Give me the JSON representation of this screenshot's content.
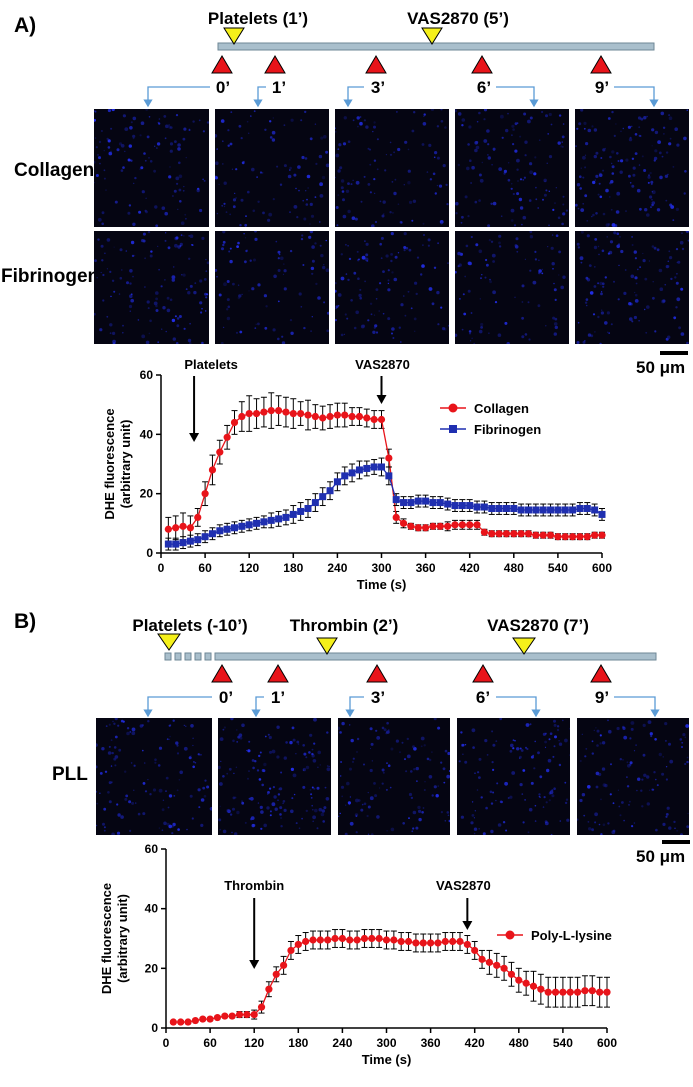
{
  "panels": [
    {
      "label": "A)",
      "timeline": {
        "events": [
          {
            "label": "Platelets (1’)"
          },
          {
            "label": "VAS2870 (5’)"
          }
        ],
        "timepoints": [
          "0’",
          "1’",
          "3’",
          "6’",
          "9’"
        ]
      },
      "rows": [
        "Collagen",
        "Fibrinogen"
      ],
      "scale_bar": "50 μm"
    },
    {
      "label": "B)",
      "timeline": {
        "events": [
          {
            "label": "Platelets (-10’)"
          },
          {
            "label": "Thrombin (2’)"
          },
          {
            "label": "VAS2870 (7’)"
          }
        ],
        "timepoints": [
          "0’",
          "1’",
          "3’",
          "6’",
          "9’"
        ]
      },
      "rows": [
        "PLL"
      ],
      "scale_bar": "50 μm"
    }
  ],
  "colors": {
    "collagen": "#e8141a",
    "fibrinogen": "#1f2fb0",
    "pll": "#e8141a",
    "timeline_bar": "#a9bfcc",
    "marker_red": "#e8141a",
    "marker_yellow": "#f5f01a",
    "arrow_blue": "#5b9bd5"
  },
  "chart_data": [
    {
      "type": "line",
      "xlabel": "Time (s)",
      "ylabel": "DHE fluorescence\n(arbitrary unit)",
      "xlim": [
        0,
        600
      ],
      "ylim": [
        0,
        60
      ],
      "xticks": [
        0,
        60,
        120,
        180,
        240,
        300,
        360,
        420,
        480,
        540,
        600
      ],
      "yticks": [
        0,
        20,
        40,
        60
      ],
      "legend": "right",
      "annotations": [
        {
          "text": "Platelets",
          "x": 45
        },
        {
          "text": "VAS2870",
          "x": 300
        }
      ],
      "series": [
        {
          "name": "Collagen",
          "marker": "circle",
          "color": "#e8141a",
          "x": [
            10,
            20,
            30,
            40,
            50,
            60,
            70,
            80,
            90,
            100,
            110,
            120,
            130,
            140,
            150,
            160,
            170,
            180,
            190,
            200,
            210,
            220,
            230,
            240,
            250,
            260,
            270,
            280,
            290,
            300,
            310,
            320,
            330,
            340,
            350,
            360,
            370,
            380,
            390,
            400,
            410,
            420,
            430,
            440,
            450,
            460,
            470,
            480,
            490,
            500,
            510,
            520,
            530,
            540,
            550,
            560,
            570,
            580,
            590,
            600
          ],
          "y": [
            8,
            8.5,
            9,
            8.5,
            12,
            20,
            28,
            34,
            39,
            44,
            46,
            47,
            47,
            47.5,
            48,
            48,
            47.5,
            47,
            47,
            46.5,
            46,
            45.5,
            46,
            46.5,
            46.5,
            46,
            46,
            45.5,
            45,
            45,
            32,
            12,
            10,
            9,
            8.5,
            8.5,
            9,
            9,
            9,
            9.5,
            9.5,
            9.5,
            9.5,
            7,
            6.5,
            6.5,
            6.5,
            6.5,
            6.5,
            6.5,
            6,
            6,
            6,
            5.5,
            5.5,
            5.5,
            5.5,
            5.5,
            6,
            6
          ],
          "err": [
            4,
            4,
            4.5,
            4,
            3,
            4,
            5,
            4,
            4,
            4,
            5,
            6,
            5,
            5,
            6,
            5,
            5,
            5,
            4,
            5,
            4,
            4,
            4,
            4,
            4,
            3,
            3,
            3,
            3,
            3,
            3,
            2,
            1.5,
            1,
            1,
            1,
            1,
            1,
            1.5,
            1.5,
            1.5,
            1.5,
            1.5,
            1,
            1,
            1,
            1,
            1,
            1,
            1,
            1,
            1,
            1,
            1,
            1,
            1,
            1,
            1,
            1,
            1
          ]
        },
        {
          "name": "Fibrinogen",
          "marker": "square",
          "color": "#1f2fb0",
          "x": [
            10,
            20,
            30,
            40,
            50,
            60,
            70,
            80,
            90,
            100,
            110,
            120,
            130,
            140,
            150,
            160,
            170,
            180,
            190,
            200,
            210,
            220,
            230,
            240,
            250,
            260,
            270,
            280,
            290,
            300,
            310,
            320,
            330,
            340,
            350,
            360,
            370,
            380,
            390,
            400,
            410,
            420,
            430,
            440,
            450,
            460,
            470,
            480,
            490,
            500,
            510,
            520,
            530,
            540,
            550,
            560,
            570,
            580,
            590,
            600
          ],
          "y": [
            3,
            3,
            3.5,
            4,
            4.5,
            5.5,
            6.5,
            7.5,
            8,
            8.5,
            9,
            9.5,
            10,
            10.5,
            11,
            11.5,
            12,
            13,
            14,
            15,
            17,
            19,
            21,
            24,
            26,
            27,
            28,
            28.5,
            29,
            29,
            26,
            18,
            17,
            17,
            17.5,
            17.5,
            17,
            17,
            16.5,
            16,
            16,
            16,
            15.5,
            15.5,
            15,
            15,
            15,
            15,
            14.5,
            14.5,
            14.5,
            14.5,
            14.5,
            14.5,
            14.5,
            14.5,
            15,
            15,
            14.5,
            13
          ],
          "err": [
            2,
            2,
            2,
            2,
            2,
            2,
            2,
            2,
            2,
            2,
            2,
            2,
            2,
            2,
            2.5,
            2.5,
            2.5,
            3,
            3,
            3,
            3,
            3,
            3,
            3,
            3,
            3,
            3,
            2.5,
            2.5,
            3,
            3,
            2,
            2,
            2,
            2,
            2,
            2,
            2,
            2,
            2,
            2,
            2,
            2,
            2,
            2,
            2,
            2,
            2,
            2,
            2,
            2,
            2,
            2,
            2,
            2,
            2,
            2,
            2,
            2,
            2
          ]
        }
      ]
    },
    {
      "type": "line",
      "xlabel": "Time (s)",
      "ylabel": "DHE fluorescence\n(arbitrary unit)",
      "xlim": [
        0,
        600
      ],
      "ylim": [
        0,
        60
      ],
      "xticks": [
        0,
        60,
        120,
        180,
        240,
        300,
        360,
        420,
        480,
        540,
        600
      ],
      "yticks": [
        0,
        20,
        40,
        60
      ],
      "legend": "right",
      "annotations": [
        {
          "text": "Thrombin",
          "x": 120
        },
        {
          "text": "VAS2870",
          "x": 410
        }
      ],
      "series": [
        {
          "name": "Poly-L-lysine",
          "marker": "circle",
          "color": "#e8141a",
          "x": [
            10,
            20,
            30,
            40,
            50,
            60,
            70,
            80,
            90,
            100,
            110,
            120,
            130,
            140,
            150,
            160,
            170,
            180,
            190,
            200,
            210,
            220,
            230,
            240,
            250,
            260,
            270,
            280,
            290,
            300,
            310,
            320,
            330,
            340,
            350,
            360,
            370,
            380,
            390,
            400,
            410,
            420,
            430,
            440,
            450,
            460,
            470,
            480,
            490,
            500,
            510,
            520,
            530,
            540,
            550,
            560,
            570,
            580,
            590,
            600
          ],
          "y": [
            2,
            2,
            2,
            2.5,
            3,
            3,
            3.5,
            4,
            4,
            4.5,
            4.5,
            4.5,
            7,
            13,
            18,
            21,
            26,
            28,
            29,
            29.5,
            29.5,
            29.5,
            30,
            30,
            29.5,
            29.5,
            30,
            30,
            30,
            29.5,
            29.5,
            29,
            29,
            28.5,
            28.5,
            28.5,
            28.5,
            29,
            29,
            29,
            28,
            26,
            23,
            22,
            21,
            20,
            18,
            16,
            15,
            14,
            13,
            12,
            12,
            12,
            12,
            12,
            12.5,
            12.5,
            12,
            12
          ],
          "err": [
            0.5,
            0.5,
            0.5,
            0.5,
            0.5,
            0.5,
            0.5,
            0.5,
            0.5,
            1,
            1,
            1.5,
            2,
            2.5,
            2.5,
            3,
            3,
            3,
            3,
            3,
            3,
            3,
            3,
            3,
            3,
            3,
            3,
            3,
            3,
            3,
            3,
            3,
            3,
            3,
            3,
            3,
            3,
            3,
            3,
            3,
            3,
            3,
            3,
            4,
            4,
            4,
            4,
            4,
            4,
            5,
            5,
            5,
            5,
            5,
            5,
            5,
            5,
            5,
            5,
            5
          ]
        }
      ]
    }
  ]
}
